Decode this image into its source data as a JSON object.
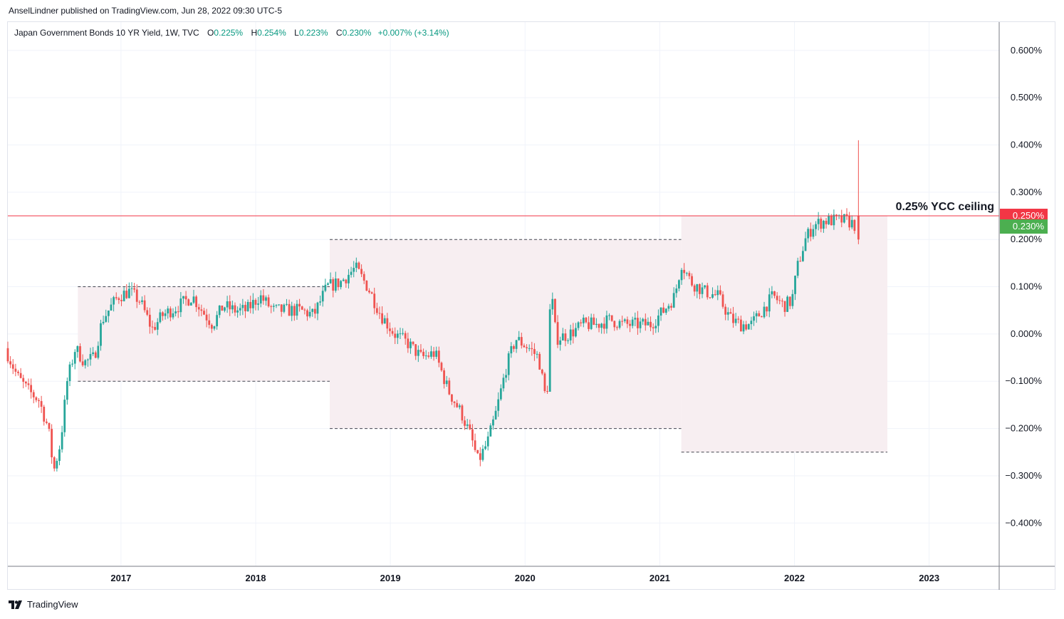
{
  "header": {
    "publisher_line": "AnselLindner published on TradingView.com, Jun 28, 2022 09:30 UTC-5"
  },
  "legend": {
    "symbol": "Japan Government Bonds 10 YR Yield, 1W, TVC",
    "open_label": "O",
    "open": "0.225%",
    "high_label": "H",
    "high": "0.254%",
    "low_label": "L",
    "low": "0.223%",
    "close_label": "C",
    "close": "0.230%",
    "change": "+0.007% (+3.14%)"
  },
  "footer": {
    "brand": "TradingView"
  },
  "colors": {
    "up": "#26a69a",
    "down": "#ef5350",
    "ceiling_line": "#f23645",
    "close_tag": "#4caf50",
    "range_fill": "#f7eef1"
  },
  "chart_data": {
    "type": "candlestick",
    "title": "Japan Government Bonds 10 YR Yield, 1W, TVC",
    "y_unit": "%",
    "ylim": [
      -0.49,
      0.66
    ],
    "y_ticks": [
      0.6,
      0.5,
      0.4,
      0.3,
      0.2,
      0.1,
      0.0,
      -0.1,
      -0.2,
      -0.3,
      -0.4
    ],
    "y_tick_labels": [
      "0.600%",
      "0.500%",
      "0.400%",
      "0.300%",
      "0.200%",
      "0.100%",
      "0.000%",
      "−0.100%",
      "−0.200%",
      "−0.300%",
      "−0.400%"
    ],
    "x_ticks": [
      "2017",
      "2018",
      "2019",
      "2020",
      "2021",
      "2022",
      "2023"
    ],
    "x_tick_years": [
      2017,
      2018,
      2019,
      2020,
      2021,
      2022,
      2023
    ],
    "xlim": [
      2016.16,
      2023.52
    ],
    "grid": true,
    "ceiling": {
      "value": 0.25,
      "label": "0.25% YCC ceiling",
      "tag": "0.250%"
    },
    "last_close": {
      "value": 0.23,
      "tag": "0.230%"
    },
    "ranges": [
      {
        "start": 2016.68,
        "end": 2018.55,
        "top": 0.1,
        "bottom": -0.1
      },
      {
        "start": 2018.55,
        "end": 2021.16,
        "top": 0.2,
        "bottom": -0.2
      },
      {
        "start": 2021.16,
        "end": 2022.69,
        "top": 0.25,
        "bottom": -0.25
      }
    ],
    "path_points": [
      [
        2016.16,
        -0.03
      ],
      [
        2016.25,
        -0.09
      ],
      [
        2016.33,
        -0.12
      ],
      [
        2016.41,
        -0.14
      ],
      [
        2016.48,
        -0.2
      ],
      [
        2016.52,
        -0.29
      ],
      [
        2016.57,
        -0.23
      ],
      [
        2016.62,
        -0.1
      ],
      [
        2016.68,
        -0.03
      ],
      [
        2016.75,
        -0.06
      ],
      [
        2016.82,
        -0.05
      ],
      [
        2016.88,
        0.03
      ],
      [
        2016.95,
        0.06
      ],
      [
        2017.0,
        0.08
      ],
      [
        2017.08,
        0.09
      ],
      [
        2017.16,
        0.07
      ],
      [
        2017.25,
        0.01
      ],
      [
        2017.33,
        0.04
      ],
      [
        2017.45,
        0.06
      ],
      [
        2017.55,
        0.08
      ],
      [
        2017.62,
        0.05
      ],
      [
        2017.7,
        0.02
      ],
      [
        2017.78,
        0.06
      ],
      [
        2017.86,
        0.05
      ],
      [
        2017.95,
        0.05
      ],
      [
        2018.05,
        0.08
      ],
      [
        2018.15,
        0.05
      ],
      [
        2018.25,
        0.05
      ],
      [
        2018.35,
        0.05
      ],
      [
        2018.45,
        0.04
      ],
      [
        2018.55,
        0.1
      ],
      [
        2018.65,
        0.11
      ],
      [
        2018.76,
        0.14
      ],
      [
        2018.85,
        0.1
      ],
      [
        2018.95,
        0.04
      ],
      [
        2019.05,
        0.0
      ],
      [
        2019.15,
        -0.02
      ],
      [
        2019.25,
        -0.05
      ],
      [
        2019.35,
        -0.04
      ],
      [
        2019.45,
        -0.12
      ],
      [
        2019.55,
        -0.17
      ],
      [
        2019.62,
        -0.22
      ],
      [
        2019.67,
        -0.27
      ],
      [
        2019.74,
        -0.23
      ],
      [
        2019.8,
        -0.17
      ],
      [
        2019.88,
        -0.07
      ],
      [
        2019.95,
        -0.01
      ],
      [
        2020.05,
        -0.03
      ],
      [
        2020.12,
        -0.05
      ],
      [
        2020.18,
        -0.15
      ],
      [
        2020.21,
        0.1
      ],
      [
        2020.25,
        -0.01
      ],
      [
        2020.35,
        0.0
      ],
      [
        2020.45,
        0.02
      ],
      [
        2020.55,
        0.02
      ],
      [
        2020.65,
        0.03
      ],
      [
        2020.75,
        0.02
      ],
      [
        2020.85,
        0.02
      ],
      [
        2020.95,
        0.02
      ],
      [
        2021.05,
        0.05
      ],
      [
        2021.13,
        0.08
      ],
      [
        2021.18,
        0.15
      ],
      [
        2021.25,
        0.11
      ],
      [
        2021.35,
        0.09
      ],
      [
        2021.45,
        0.08
      ],
      [
        2021.55,
        0.03
      ],
      [
        2021.62,
        0.02
      ],
      [
        2021.7,
        0.02
      ],
      [
        2021.78,
        0.05
      ],
      [
        2021.86,
        0.08
      ],
      [
        2021.94,
        0.06
      ],
      [
        2022.0,
        0.07
      ],
      [
        2022.04,
        0.14
      ],
      [
        2022.1,
        0.2
      ],
      [
        2022.16,
        0.23
      ],
      [
        2022.25,
        0.24
      ],
      [
        2022.33,
        0.24
      ],
      [
        2022.41,
        0.24
      ],
      [
        2022.47,
        0.23
      ]
    ],
    "spike": {
      "x": 2022.475,
      "high": 0.41,
      "low": 0.19,
      "open": 0.25,
      "close": 0.2
    }
  }
}
